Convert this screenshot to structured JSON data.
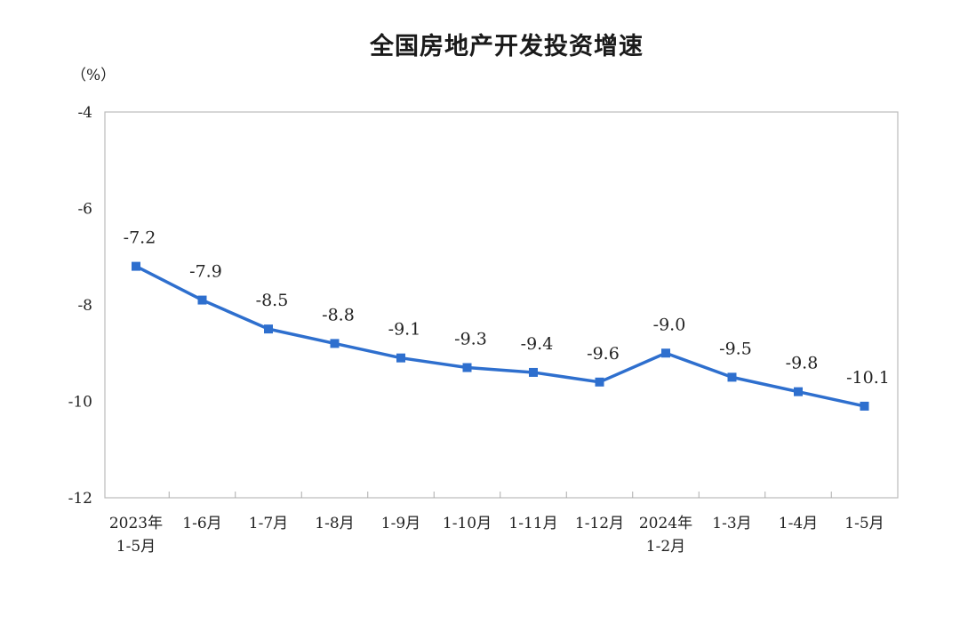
{
  "chart_data": {
    "type": "line",
    "title": "全国房地产开发投资增速",
    "unit": "（%）",
    "ylim": [
      -12,
      -4
    ],
    "yticks": [
      "-4",
      "-6",
      "-8",
      "-10",
      "-12"
    ],
    "ytick_values": [
      -4,
      -6,
      -8,
      -10,
      -12
    ],
    "categories": [
      [
        "2023年",
        "1-5月"
      ],
      [
        "1-6月"
      ],
      [
        "1-7月"
      ],
      [
        "1-8月"
      ],
      [
        "1-9月"
      ],
      [
        "1-10月"
      ],
      [
        "1-11月"
      ],
      [
        "1-12月"
      ],
      [
        "2024年",
        "1-2月"
      ],
      [
        "1-3月"
      ],
      [
        "1-4月"
      ],
      [
        "1-5月"
      ]
    ],
    "values": [
      -7.2,
      -7.9,
      -8.5,
      -8.8,
      -9.1,
      -9.3,
      -9.4,
      -9.6,
      -9.0,
      -9.5,
      -9.8,
      -10.1
    ],
    "value_labels": [
      "-7.2",
      "-7.9",
      "-8.5",
      "-8.8",
      "-9.1",
      "-9.3",
      "-9.4",
      "-9.6",
      "-9.0",
      "-9.5",
      "-9.8",
      "-10.1"
    ],
    "grid": false,
    "legend": "none",
    "line_color": "#2e6fce"
  }
}
